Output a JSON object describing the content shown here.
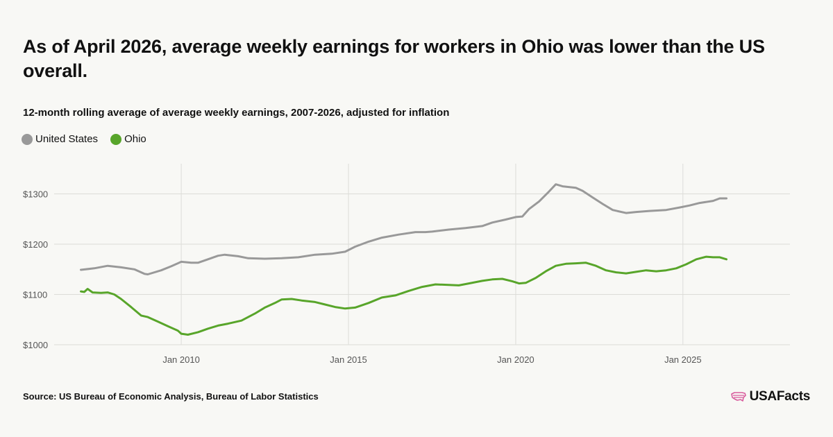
{
  "header": {
    "title": "As of April 2026, average weekly earnings for workers in Ohio was lower than the US overall.",
    "subtitle": "12-month rolling average of average weekly earnings, 2007-2026, adjusted for inflation"
  },
  "legend": [
    {
      "label": "United States",
      "color": "#999999"
    },
    {
      "label": "Ohio",
      "color": "#58a52a"
    }
  ],
  "footer": {
    "source": "Source: US Bureau of Economic Analysis, Bureau of Labor Statistics",
    "brand": "USAFacts",
    "brand_icon": "us-map-icon",
    "brand_icon_color": "#d85a9c"
  },
  "chart_data": {
    "type": "line",
    "xlim": [
      2006.2,
      2028.2
    ],
    "ylim": [
      1000,
      1360
    ],
    "x_ticks": [
      {
        "value": 2010,
        "label": "Jan 2010"
      },
      {
        "value": 2015,
        "label": "Jan 2015"
      },
      {
        "value": 2020,
        "label": "Jan 2020"
      },
      {
        "value": 2025,
        "label": "Jan 2025"
      }
    ],
    "y_ticks": [
      {
        "value": 1000,
        "label": "$1000"
      },
      {
        "value": 1100,
        "label": "$1100"
      },
      {
        "value": 1200,
        "label": "$1200"
      },
      {
        "value": 1300,
        "label": "$1300"
      }
    ],
    "grid": true,
    "legend_position": "top-left",
    "series": [
      {
        "name": "United States",
        "color": "#999999",
        "points": [
          [
            2007.0,
            1149
          ],
          [
            2007.4,
            1152
          ],
          [
            2007.8,
            1157
          ],
          [
            2008.2,
            1154
          ],
          [
            2008.6,
            1150
          ],
          [
            2008.9,
            1141
          ],
          [
            2009.0,
            1140
          ],
          [
            2009.4,
            1148
          ],
          [
            2009.7,
            1156
          ],
          [
            2010.0,
            1165
          ],
          [
            2010.3,
            1163
          ],
          [
            2010.5,
            1163
          ],
          [
            2010.8,
            1170
          ],
          [
            2011.1,
            1177
          ],
          [
            2011.3,
            1179
          ],
          [
            2011.7,
            1176
          ],
          [
            2012.0,
            1172
          ],
          [
            2012.5,
            1171
          ],
          [
            2013.0,
            1172
          ],
          [
            2013.5,
            1174
          ],
          [
            2014.0,
            1179
          ],
          [
            2014.5,
            1181
          ],
          [
            2014.9,
            1185
          ],
          [
            2015.2,
            1195
          ],
          [
            2015.6,
            1205
          ],
          [
            2016.0,
            1213
          ],
          [
            2016.5,
            1219
          ],
          [
            2017.0,
            1224
          ],
          [
            2017.3,
            1224
          ],
          [
            2017.5,
            1225
          ],
          [
            2018.0,
            1229
          ],
          [
            2018.5,
            1232
          ],
          [
            2019.0,
            1236
          ],
          [
            2019.3,
            1243
          ],
          [
            2019.7,
            1249
          ],
          [
            2020.0,
            1254
          ],
          [
            2020.2,
            1255
          ],
          [
            2020.4,
            1270
          ],
          [
            2020.7,
            1285
          ],
          [
            2021.0,
            1305
          ],
          [
            2021.2,
            1319
          ],
          [
            2021.4,
            1315
          ],
          [
            2021.8,
            1312
          ],
          [
            2022.0,
            1306
          ],
          [
            2022.3,
            1293
          ],
          [
            2022.6,
            1280
          ],
          [
            2022.9,
            1268
          ],
          [
            2023.3,
            1262
          ],
          [
            2023.6,
            1264
          ],
          [
            2024.0,
            1266
          ],
          [
            2024.5,
            1268
          ],
          [
            2024.9,
            1273
          ],
          [
            2025.2,
            1277
          ],
          [
            2025.5,
            1282
          ],
          [
            2025.9,
            1286
          ],
          [
            2026.1,
            1291
          ],
          [
            2026.3,
            1291
          ]
        ]
      },
      {
        "name": "Ohio",
        "color": "#58a52a",
        "points": [
          [
            2007.0,
            1106
          ],
          [
            2007.1,
            1105
          ],
          [
            2007.2,
            1111
          ],
          [
            2007.35,
            1104
          ],
          [
            2007.6,
            1103
          ],
          [
            2007.8,
            1104
          ],
          [
            2008.0,
            1100
          ],
          [
            2008.2,
            1091
          ],
          [
            2008.5,
            1075
          ],
          [
            2008.8,
            1058
          ],
          [
            2009.0,
            1055
          ],
          [
            2009.3,
            1046
          ],
          [
            2009.6,
            1037
          ],
          [
            2009.9,
            1028
          ],
          [
            2010.0,
            1022
          ],
          [
            2010.2,
            1020
          ],
          [
            2010.5,
            1025
          ],
          [
            2010.8,
            1032
          ],
          [
            2011.1,
            1038
          ],
          [
            2011.4,
            1042
          ],
          [
            2011.8,
            1048
          ],
          [
            2012.2,
            1062
          ],
          [
            2012.5,
            1074
          ],
          [
            2012.8,
            1083
          ],
          [
            2013.0,
            1090
          ],
          [
            2013.3,
            1091
          ],
          [
            2013.6,
            1088
          ],
          [
            2014.0,
            1085
          ],
          [
            2014.3,
            1080
          ],
          [
            2014.6,
            1075
          ],
          [
            2014.9,
            1072
          ],
          [
            2015.2,
            1074
          ],
          [
            2015.6,
            1083
          ],
          [
            2016.0,
            1094
          ],
          [
            2016.4,
            1098
          ],
          [
            2016.8,
            1107
          ],
          [
            2017.2,
            1115
          ],
          [
            2017.6,
            1120
          ],
          [
            2018.0,
            1119
          ],
          [
            2018.3,
            1118
          ],
          [
            2018.6,
            1122
          ],
          [
            2019.0,
            1127
          ],
          [
            2019.3,
            1130
          ],
          [
            2019.6,
            1131
          ],
          [
            2019.9,
            1126
          ],
          [
            2020.1,
            1122
          ],
          [
            2020.3,
            1123
          ],
          [
            2020.6,
            1133
          ],
          [
            2020.9,
            1146
          ],
          [
            2021.2,
            1157
          ],
          [
            2021.5,
            1161
          ],
          [
            2021.8,
            1162
          ],
          [
            2022.1,
            1163
          ],
          [
            2022.4,
            1157
          ],
          [
            2022.7,
            1148
          ],
          [
            2023.0,
            1144
          ],
          [
            2023.3,
            1142
          ],
          [
            2023.6,
            1145
          ],
          [
            2023.9,
            1148
          ],
          [
            2024.2,
            1146
          ],
          [
            2024.5,
            1148
          ],
          [
            2024.8,
            1152
          ],
          [
            2025.1,
            1160
          ],
          [
            2025.4,
            1170
          ],
          [
            2025.7,
            1175
          ],
          [
            2025.9,
            1174
          ],
          [
            2026.1,
            1174
          ],
          [
            2026.3,
            1170
          ]
        ]
      }
    ]
  }
}
